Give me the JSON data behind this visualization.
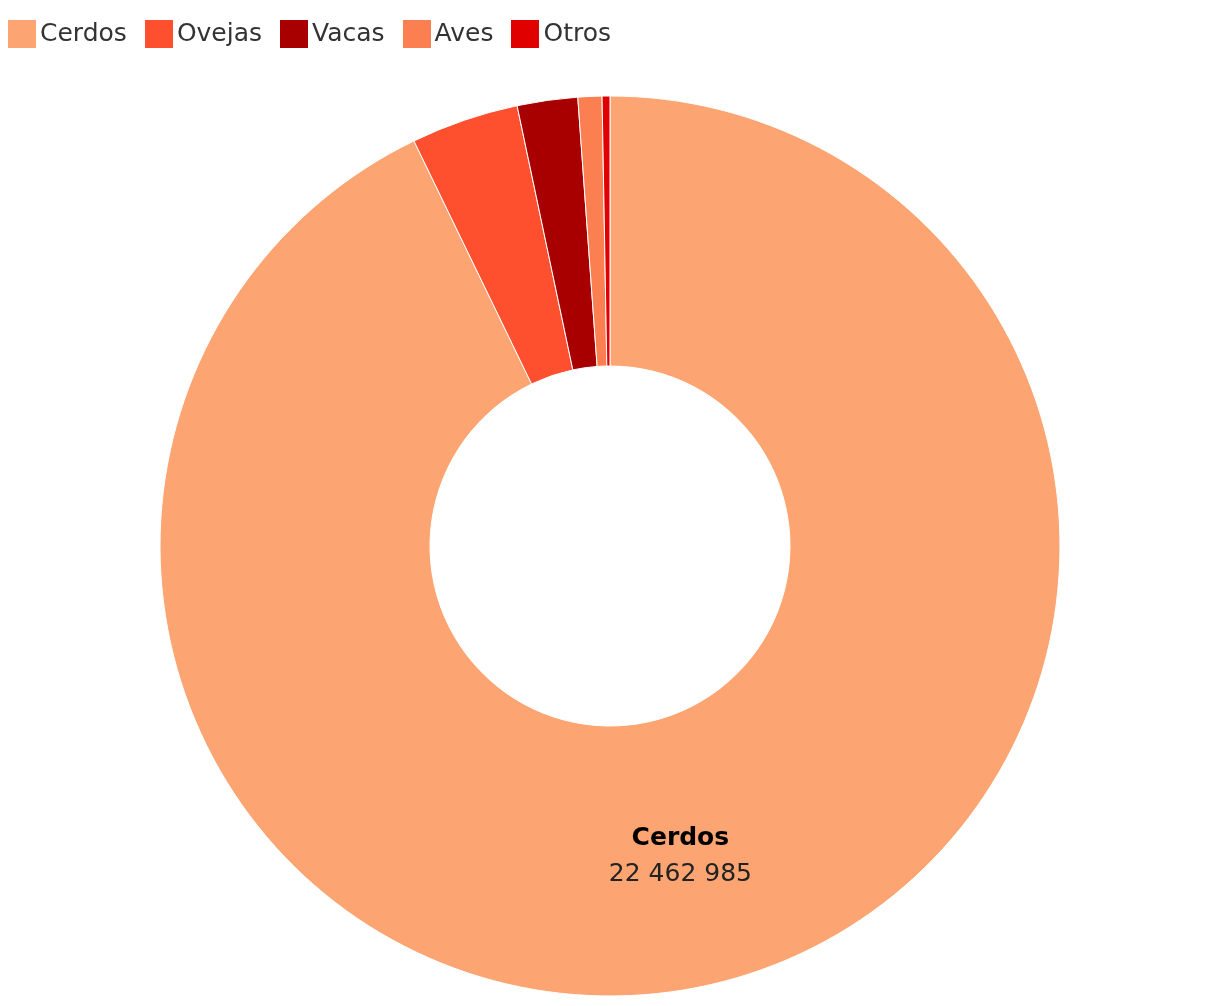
{
  "chart_data": {
    "type": "donut",
    "categories": [
      "Cerdos",
      "Ovejas",
      "Vacas",
      "Aves",
      "Otros"
    ],
    "values": [
      22462985,
      935000,
      525000,
      208000,
      68000
    ],
    "colors": [
      "#fca572",
      "#fe4f2e",
      "#a80000",
      "#fc7f52",
      "#e00000"
    ],
    "value_labels": [
      "22 462 985",
      null,
      null,
      null,
      null
    ],
    "legend": "top left"
  }
}
